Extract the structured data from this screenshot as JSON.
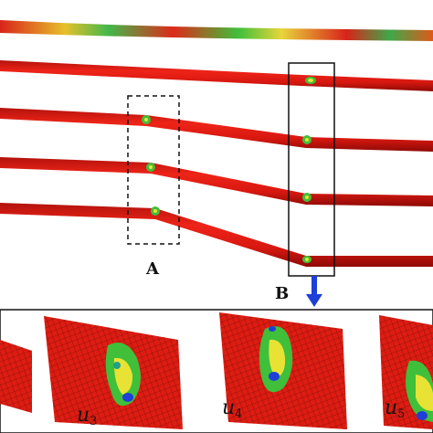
{
  "labels": {
    "box_a": "A",
    "box_b": "B"
  },
  "panel_labels": [
    {
      "symbol": "u",
      "index": "3"
    },
    {
      "symbol": "u",
      "index": "4"
    },
    {
      "symbol": "u",
      "index": "5"
    }
  ],
  "colors": {
    "beam_red": "#e01a12",
    "beam_dark": "#9b0c08",
    "contour_green": "#3fbf3a",
    "contour_yellow": "#e8e235",
    "contour_blue": "#1f3fd8",
    "arrow_blue": "#1f3fd8"
  }
}
